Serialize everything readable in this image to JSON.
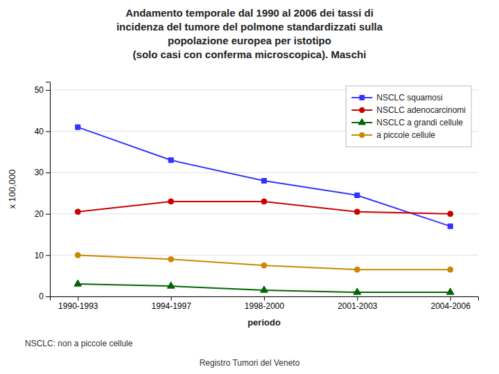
{
  "chart_data": {
    "type": "line",
    "title": "Andamento temporale dal 1990 al 2006 dei tassi di\nincidenza del tumore del polmone standardizzati sulla\npopolazione europea per istotipo\n(solo casi con conferma microscopica).  Maschi",
    "xlabel": "periodo",
    "ylabel": "x 100,000",
    "categories": [
      "1990-1993",
      "1994-1997",
      "1998-2000",
      "2001-2003",
      "2004-2006"
    ],
    "series": [
      {
        "name": "NSCLC squamosi",
        "color": "#3333FF",
        "marker": "square",
        "values": [
          41,
          33,
          28,
          24.5,
          17
        ]
      },
      {
        "name": "NSCLC adenocarcinomi",
        "color": "#CC0000",
        "marker": "circle",
        "values": [
          20.5,
          23,
          23,
          20.5,
          20
        ]
      },
      {
        "name": "NSCLC a grandi cellule",
        "color": "#006600",
        "marker": "triangle",
        "values": [
          3,
          2.5,
          1.5,
          1,
          1
        ]
      },
      {
        "name": "a piccole cellule",
        "color": "#CC8800",
        "marker": "circle",
        "values": [
          10,
          9,
          7.5,
          6.5,
          6.5
        ]
      }
    ],
    "ylim": [
      0,
      52
    ],
    "yticks": [
      0,
      10,
      20,
      30,
      40,
      50
    ],
    "grid": true,
    "legend": "upper right",
    "annotations": [
      "NSCLC: non a piccole cellule",
      "Registro Tumori del Veneto"
    ]
  }
}
